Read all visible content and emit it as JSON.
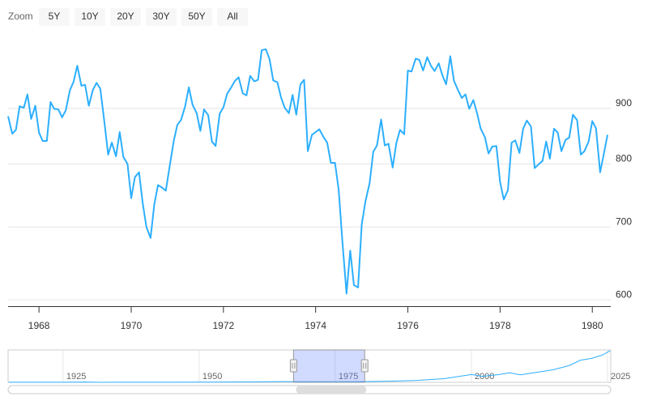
{
  "chart_data": {
    "type": "line",
    "range_selector": {
      "label": "Zoom",
      "buttons": [
        "5Y",
        "10Y",
        "20Y",
        "30Y",
        "50Y",
        "All"
      ]
    },
    "log_scale": true,
    "grid": true,
    "color": "#2caffe",
    "xlim": [
      1967.33,
      1980.4
    ],
    "xticks": [
      1968,
      1970,
      1972,
      1974,
      1976,
      1978,
      1980
    ],
    "ylim": [
      592,
      1048
    ],
    "yticks": [
      600,
      700,
      800,
      900
    ],
    "x": [
      1967.33,
      1967.42,
      1967.5,
      1967.58,
      1967.67,
      1967.75,
      1967.83,
      1967.92,
      1968,
      1968.08,
      1968.17,
      1968.25,
      1968.33,
      1968.42,
      1968.5,
      1968.58,
      1968.67,
      1968.75,
      1968.83,
      1968.92,
      1969,
      1969.08,
      1969.17,
      1969.25,
      1969.33,
      1969.42,
      1969.5,
      1969.58,
      1969.67,
      1969.75,
      1969.83,
      1969.92,
      1970,
      1970.08,
      1970.17,
      1970.25,
      1970.33,
      1970.42,
      1970.5,
      1970.58,
      1970.67,
      1970.75,
      1970.83,
      1970.92,
      1971,
      1971.08,
      1971.17,
      1971.25,
      1971.33,
      1971.42,
      1971.5,
      1971.58,
      1971.67,
      1971.75,
      1971.83,
      1971.92,
      1972,
      1972.08,
      1972.17,
      1972.25,
      1972.33,
      1972.42,
      1972.5,
      1972.58,
      1972.67,
      1972.75,
      1972.83,
      1972.92,
      1973,
      1973.08,
      1973.17,
      1973.25,
      1973.33,
      1973.42,
      1973.5,
      1973.58,
      1973.67,
      1973.75,
      1973.83,
      1973.92,
      1974,
      1974.08,
      1974.17,
      1974.25,
      1974.33,
      1974.42,
      1974.5,
      1974.58,
      1974.67,
      1974.75,
      1974.83,
      1974.92,
      1975,
      1975.08,
      1975.17,
      1975.25,
      1975.33,
      1975.42,
      1975.5,
      1975.58,
      1975.67,
      1975.75,
      1975.83,
      1975.92,
      1976,
      1976.08,
      1976.17,
      1976.25,
      1976.33,
      1976.42,
      1976.5,
      1976.58,
      1976.67,
      1976.75,
      1976.83,
      1976.92,
      1977,
      1977.08,
      1977.17,
      1977.25,
      1977.33,
      1977.42,
      1977.5,
      1977.58,
      1977.67,
      1977.75,
      1977.83,
      1977.92,
      1978,
      1978.08,
      1978.17,
      1978.25,
      1978.33,
      1978.42,
      1978.5,
      1978.58,
      1978.67,
      1978.75,
      1978.83,
      1978.92,
      1979,
      1979.08,
      1979.17,
      1979.25,
      1979.33,
      1979.42,
      1979.5,
      1979.58,
      1979.67,
      1979.75,
      1979.83,
      1979.92,
      1980,
      1980.08,
      1980.17,
      1980.25,
      1980.33
    ],
    "values": [
      885,
      853,
      860,
      904,
      901,
      927,
      880,
      905,
      855,
      840,
      840,
      912,
      899,
      898,
      883,
      896,
      935,
      952,
      985,
      944,
      946,
      905,
      936,
      950,
      938,
      873,
      816,
      837,
      813,
      856,
      812,
      800,
      744,
      778,
      786,
      736,
      700,
      684,
      734,
      765,
      761,
      756,
      794,
      839,
      869,
      878,
      904,
      941,
      907,
      891,
      858,
      898,
      887,
      839,
      831,
      890,
      902,
      928,
      941,
      954,
      961,
      929,
      925,
      964,
      953,
      956,
      1018,
      1020,
      999,
      955,
      951,
      921,
      901,
      891,
      926,
      888,
      947,
      956,
      822,
      851,
      856,
      861,
      847,
      837,
      802,
      802,
      757,
      679,
      608,
      666,
      619,
      616,
      704,
      739,
      768,
      821,
      832,
      879,
      832,
      835,
      794,
      836,
      860,
      852,
      975,
      973,
      1000,
      997,
      975,
      1003,
      985,
      974,
      990,
      965,
      947,
      1005,
      954,
      937,
      920,
      927,
      899,
      916,
      891,
      862,
      847,
      818,
      830,
      831,
      770,
      742,
      757,
      837,
      841,
      819,
      862,
      877,
      866,
      793,
      799,
      805,
      839,
      809,
      862,
      855,
      822,
      842,
      846,
      888,
      878,
      816,
      822,
      839,
      876,
      863,
      786,
      817,
      851
    ],
    "navigator": {
      "xlim": [
        1914.9,
        2025.6
      ],
      "ylim": [
        0,
        45000
      ],
      "xticks": [
        1925,
        1950,
        1975,
        2000,
        2025
      ],
      "x": [
        1915,
        1920,
        1925,
        1929,
        1932,
        1935,
        1940,
        1945,
        1950,
        1955,
        1960,
        1965,
        1970,
        1975,
        1980,
        1985,
        1990,
        1995,
        2000,
        2002,
        2005,
        2007,
        2009,
        2010,
        2015,
        2018,
        2020,
        2022,
        2024,
        2025.5
      ],
      "values": [
        80,
        100,
        150,
        380,
        60,
        150,
        140,
        190,
        235,
        488,
        615,
        969,
        800,
        852,
        964,
        1547,
        2634,
        5117,
        10787,
        8342,
        10718,
        13265,
        10428,
        11578,
        17425,
        23327,
        30606,
        33147,
        37690,
        44000
      ]
    }
  }
}
